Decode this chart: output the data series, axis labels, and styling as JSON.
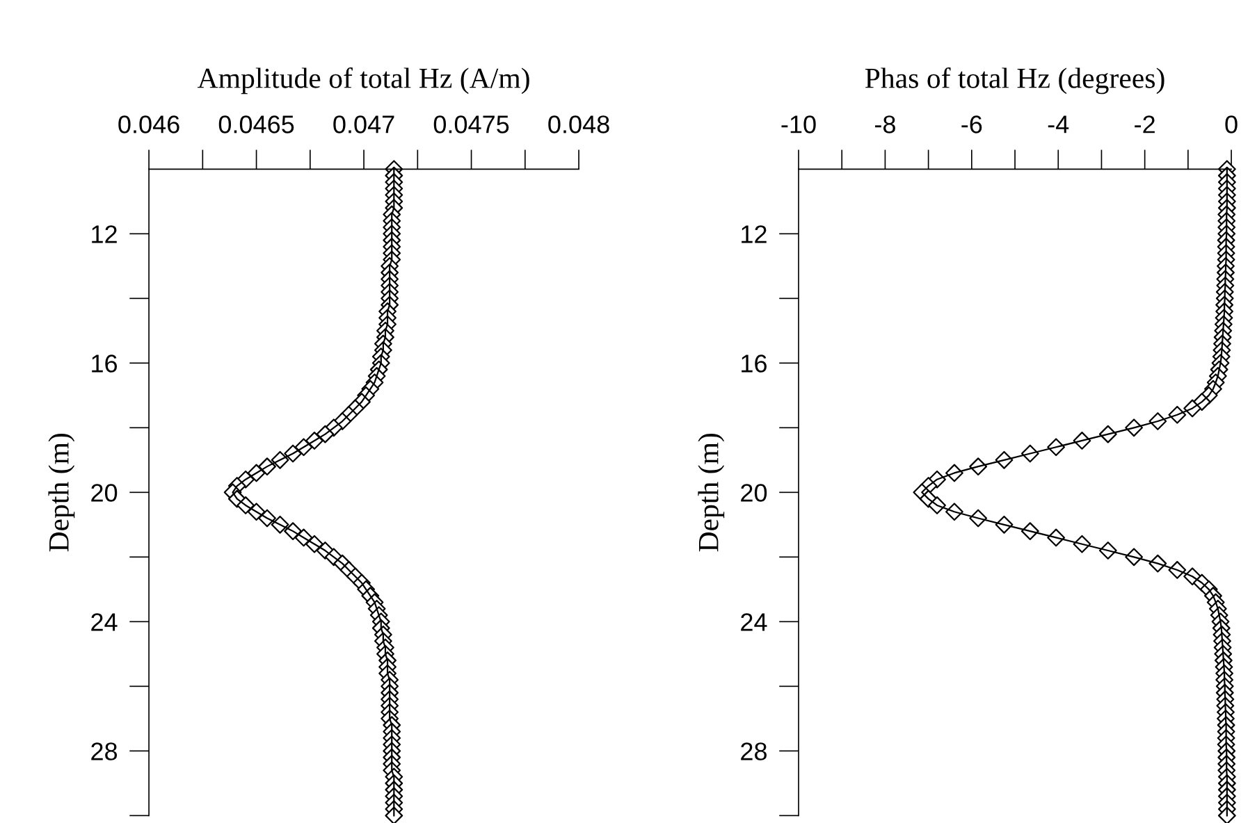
{
  "chart_data": [
    {
      "type": "line",
      "xlabel": "Amplitude of total Hz (A/m)",
      "ylabel": "Depth (m)",
      "marker": "diamond",
      "line_style": "solid",
      "grid": false,
      "xlim": [
        0.046,
        0.048
      ],
      "xticks": [
        0.046,
        {
          "value": 0.04625,
          "label": null
        },
        0.0465,
        {
          "value": 0.04675,
          "label": null
        },
        0.047,
        {
          "value": 0.04725,
          "label": null
        },
        0.0475,
        {
          "value": 0.04775,
          "label": null
        },
        0.048
      ],
      "ylim": [
        30,
        10
      ],
      "yticks": [
        12,
        {
          "value": 14,
          "label": null
        },
        16,
        {
          "value": 18,
          "label": null
        },
        20,
        {
          "value": 22,
          "label": null
        },
        24,
        {
          "value": 26,
          "label": null
        },
        28,
        {
          "value": 30,
          "label": null
        }
      ],
      "series": [
        {
          "color": "#000000",
          "values": [
            10.0,
            10.2,
            10.4,
            10.6,
            10.8,
            11.0,
            11.2,
            11.4,
            11.6,
            11.8,
            12.0,
            12.2,
            12.4,
            12.6,
            12.8,
            13.0,
            13.2,
            13.4,
            13.6,
            13.8,
            14.0,
            14.2,
            14.4,
            14.6,
            14.8,
            15.0,
            15.2,
            15.4,
            15.6,
            15.8,
            16.0,
            16.2,
            16.4,
            16.6,
            16.8,
            17.0,
            17.2,
            17.4,
            17.6,
            17.8,
            18.0,
            18.2,
            18.4,
            18.6,
            18.8,
            19.0,
            19.2,
            19.4,
            19.6,
            19.8,
            20.0,
            20.2,
            20.4,
            20.6,
            20.8,
            21.0,
            21.2,
            21.4,
            21.6,
            21.8,
            22.0,
            22.2,
            22.4,
            22.6,
            22.8,
            23.0,
            23.2,
            23.4,
            23.6,
            23.8,
            24.0,
            24.2,
            24.4,
            24.6,
            24.8,
            25.0,
            25.2,
            25.4,
            25.6,
            25.8,
            26.0,
            26.2,
            26.4,
            26.6,
            26.8,
            27.0,
            27.2,
            27.4,
            27.6,
            27.8,
            28.0,
            28.2,
            28.4,
            28.6,
            28.8,
            29.0,
            29.2,
            29.4,
            29.6,
            29.8,
            30.0
          ],
          "x": [
            0.04714,
            0.04714,
            0.04714,
            0.04714,
            0.04714,
            0.04714,
            0.04714,
            0.04713,
            0.04713,
            0.04713,
            0.04713,
            0.04713,
            0.04713,
            0.04713,
            0.04713,
            0.04712,
            0.04712,
            0.04712,
            0.04712,
            0.04712,
            0.04712,
            0.04712,
            0.04711,
            0.04711,
            0.04711,
            0.0471,
            0.0471,
            0.04709,
            0.04709,
            0.04708,
            0.04708,
            0.04707,
            0.04706,
            0.04705,
            0.04703,
            0.04701,
            0.04699,
            0.04696,
            0.04693,
            0.0469,
            0.04686,
            0.04682,
            0.04677,
            0.04672,
            0.04667,
            0.04661,
            0.04655,
            0.0465,
            0.04645,
            0.04641,
            0.04639,
            0.04641,
            0.04645,
            0.0465,
            0.04655,
            0.04661,
            0.04667,
            0.04672,
            0.04677,
            0.04682,
            0.04686,
            0.0469,
            0.04693,
            0.04696,
            0.04699,
            0.04701,
            0.04703,
            0.04705,
            0.04706,
            0.04707,
            0.04708,
            0.04708,
            0.04709,
            0.04709,
            0.0471,
            0.0471,
            0.04711,
            0.04711,
            0.04711,
            0.04712,
            0.04712,
            0.04712,
            0.04712,
            0.04712,
            0.04712,
            0.04712,
            0.04713,
            0.04713,
            0.04713,
            0.04713,
            0.04713,
            0.04713,
            0.04713,
            0.04713,
            0.04714,
            0.04714,
            0.04714,
            0.04714,
            0.04714,
            0.04714,
            0.04714
          ]
        }
      ]
    },
    {
      "type": "line",
      "xlabel": "Phas of total Hz (degrees)",
      "ylabel": "Depth (m)",
      "marker": "diamond",
      "line_style": "solid",
      "grid": false,
      "xlim": [
        -10,
        0
      ],
      "xticks": [
        -10,
        {
          "value": -9,
          "label": null
        },
        -8,
        {
          "value": -7,
          "label": null
        },
        -6,
        {
          "value": -5,
          "label": null
        },
        -4,
        {
          "value": -3,
          "label": null
        },
        -2,
        {
          "value": -1,
          "label": null
        },
        0
      ],
      "ylim": [
        30,
        10
      ],
      "yticks": [
        12,
        {
          "value": 14,
          "label": null
        },
        16,
        {
          "value": 18,
          "label": null
        },
        20,
        {
          "value": 22,
          "label": null
        },
        24,
        {
          "value": 26,
          "label": null
        },
        28,
        {
          "value": 30,
          "label": null
        }
      ],
      "series": [
        {
          "color": "#000000",
          "values": [
            10.0,
            10.2,
            10.4,
            10.6,
            10.8,
            11.0,
            11.2,
            11.4,
            11.6,
            11.8,
            12.0,
            12.2,
            12.4,
            12.6,
            12.8,
            13.0,
            13.2,
            13.4,
            13.6,
            13.8,
            14.0,
            14.2,
            14.4,
            14.6,
            14.8,
            15.0,
            15.2,
            15.4,
            15.6,
            15.8,
            16.0,
            16.2,
            16.4,
            16.6,
            16.8,
            17.0,
            17.2,
            17.4,
            17.6,
            17.8,
            18.0,
            18.2,
            18.4,
            18.6,
            18.8,
            19.0,
            19.2,
            19.4,
            19.6,
            19.8,
            20.0,
            20.2,
            20.4,
            20.6,
            20.8,
            21.0,
            21.2,
            21.4,
            21.6,
            21.8,
            22.0,
            22.2,
            22.4,
            22.6,
            22.8,
            23.0,
            23.2,
            23.4,
            23.6,
            23.8,
            24.0,
            24.2,
            24.4,
            24.6,
            24.8,
            25.0,
            25.2,
            25.4,
            25.6,
            25.8,
            26.0,
            26.2,
            26.4,
            26.6,
            26.8,
            27.0,
            27.2,
            27.4,
            27.6,
            27.8,
            28.0,
            28.2,
            28.4,
            28.6,
            28.8,
            29.0,
            29.2,
            29.4,
            29.6,
            29.8,
            30.0
          ],
          "x": [
            -0.1,
            -0.1,
            -0.1,
            -0.1,
            -0.1,
            -0.1,
            -0.1,
            -0.11,
            -0.11,
            -0.11,
            -0.11,
            -0.12,
            -0.12,
            -0.12,
            -0.12,
            -0.13,
            -0.13,
            -0.14,
            -0.14,
            -0.15,
            -0.15,
            -0.16,
            -0.16,
            -0.17,
            -0.18,
            -0.19,
            -0.2,
            -0.21,
            -0.22,
            -0.23,
            -0.25,
            -0.28,
            -0.31,
            -0.36,
            -0.42,
            -0.52,
            -0.68,
            -0.9,
            -1.25,
            -1.7,
            -2.25,
            -2.85,
            -3.45,
            -4.05,
            -4.65,
            -5.25,
            -5.85,
            -6.4,
            -6.8,
            -7.0,
            -7.15,
            -7.0,
            -6.8,
            -6.4,
            -5.85,
            -5.25,
            -4.65,
            -4.05,
            -3.45,
            -2.85,
            -2.25,
            -1.7,
            -1.25,
            -0.9,
            -0.68,
            -0.52,
            -0.42,
            -0.36,
            -0.31,
            -0.28,
            -0.25,
            -0.23,
            -0.22,
            -0.21,
            -0.2,
            -0.19,
            -0.18,
            -0.17,
            -0.16,
            -0.16,
            -0.15,
            -0.15,
            -0.14,
            -0.14,
            -0.13,
            -0.13,
            -0.12,
            -0.12,
            -0.12,
            -0.12,
            -0.11,
            -0.11,
            -0.11,
            -0.11,
            -0.1,
            -0.1,
            -0.1,
            -0.1,
            -0.1,
            -0.1,
            -0.1
          ]
        }
      ]
    }
  ]
}
